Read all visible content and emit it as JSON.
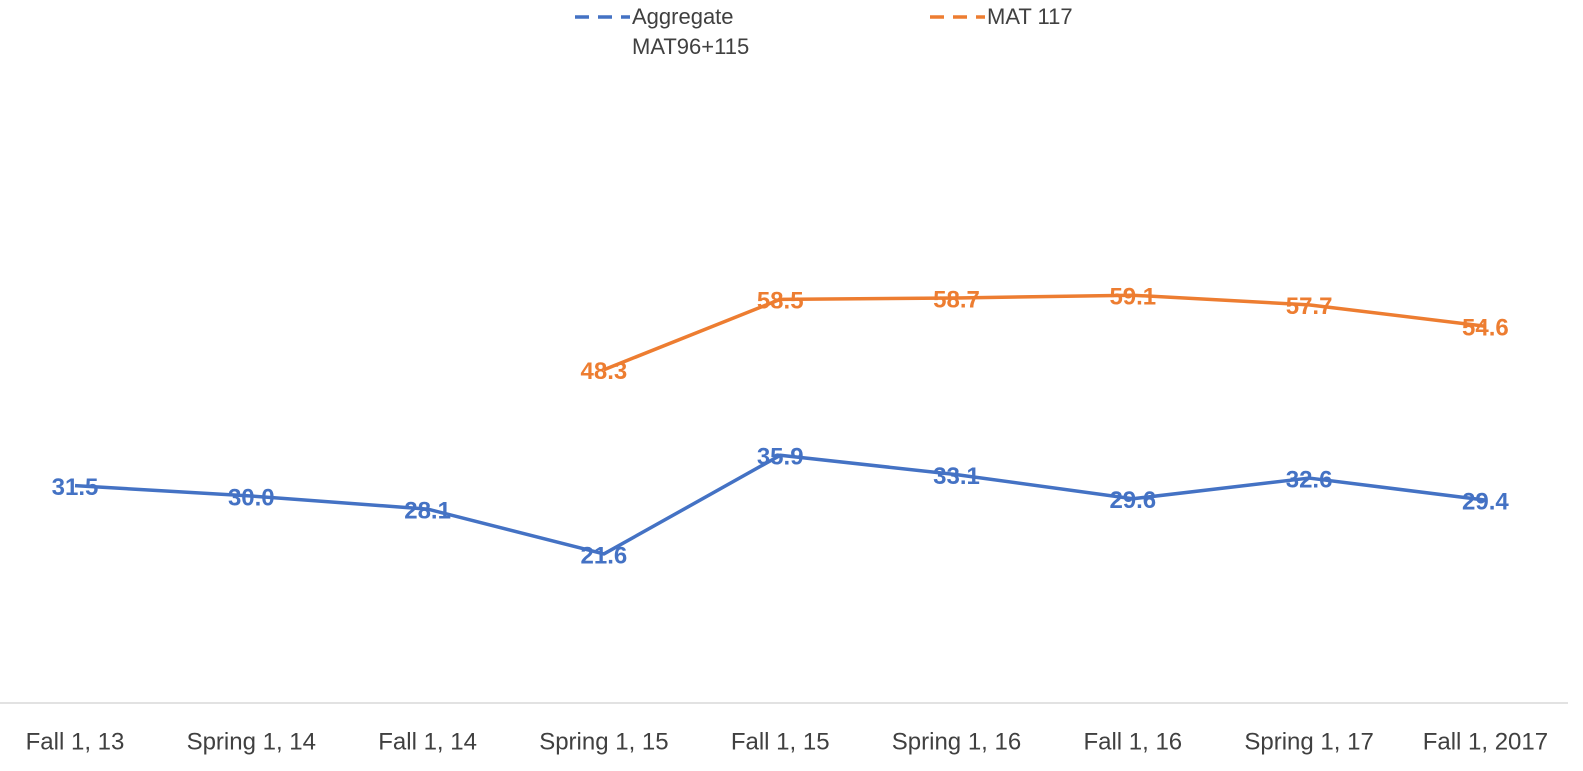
{
  "chart_data": {
    "type": "line",
    "categories": [
      "Fall 1, 13",
      "Spring 1, 14",
      "Fall 1, 14",
      "Spring 1, 15",
      "Fall 1, 15",
      "Spring 1, 16",
      "Fall 1, 16",
      "Spring 1, 17",
      "Fall 1, 2017"
    ],
    "series": [
      {
        "name": "Aggregate MAT96+115",
        "color": "#4472c4",
        "values": [
          31.5,
          30.0,
          28.1,
          21.6,
          35.9,
          33.1,
          29.6,
          32.6,
          29.4
        ],
        "value_labels": [
          "31.5",
          "30.0",
          "28.1",
          "21.6",
          "35.9",
          "33.1",
          "29.6",
          "32.6",
          "29.4"
        ]
      },
      {
        "name": "MAT 117",
        "color": "#ed7d31",
        "values": [
          null,
          null,
          null,
          48.3,
          58.5,
          58.7,
          59.1,
          57.7,
          54.6
        ]
      }
    ],
    "ylim": [
      0,
      100
    ],
    "legend": "top",
    "data_labels": true
  }
}
